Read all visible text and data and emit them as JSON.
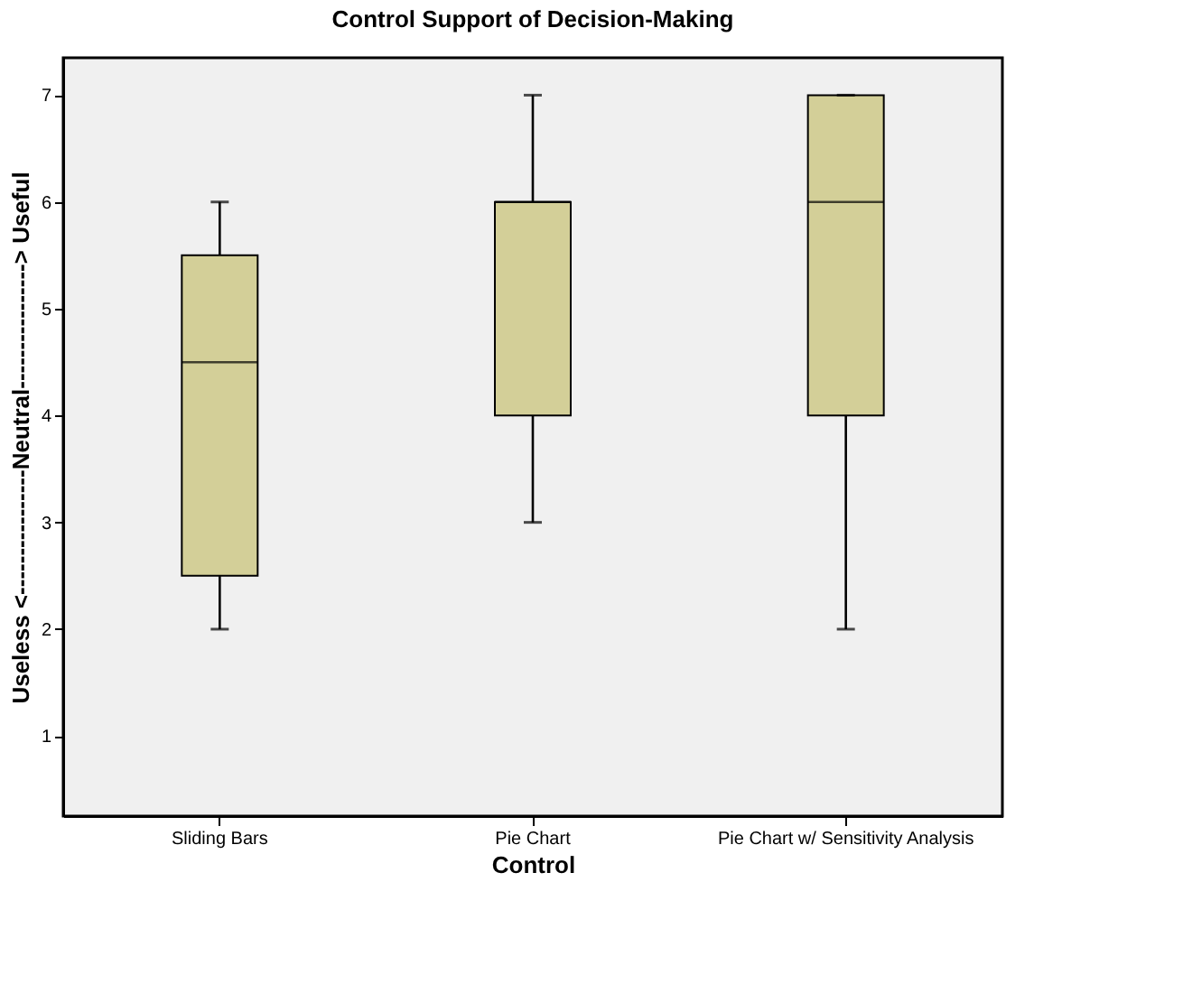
{
  "chart_data": {
    "type": "box",
    "title": "Control Support of Decision-Making",
    "xlabel": "Control",
    "ylabel": "Useless <----------------Neutral----------------> Useful",
    "categories": [
      "Sliding Bars",
      "Pie Chart",
      "Pie Chart w/ Sensitivity Analysis"
    ],
    "boxes": [
      {
        "low": 2,
        "q1": 2.5,
        "median": 4.5,
        "q3": 5.5,
        "high": 6
      },
      {
        "low": 3,
        "q1": 4,
        "median": 6,
        "q3": 6,
        "high": 7
      },
      {
        "low": 2,
        "q1": 4,
        "median": 6,
        "q3": 7,
        "high": 7
      }
    ],
    "color": "#d3cf98",
    "ylim": [
      0.25,
      7.35
    ],
    "yticks": [
      1,
      2,
      3,
      4,
      5,
      6,
      7
    ]
  }
}
